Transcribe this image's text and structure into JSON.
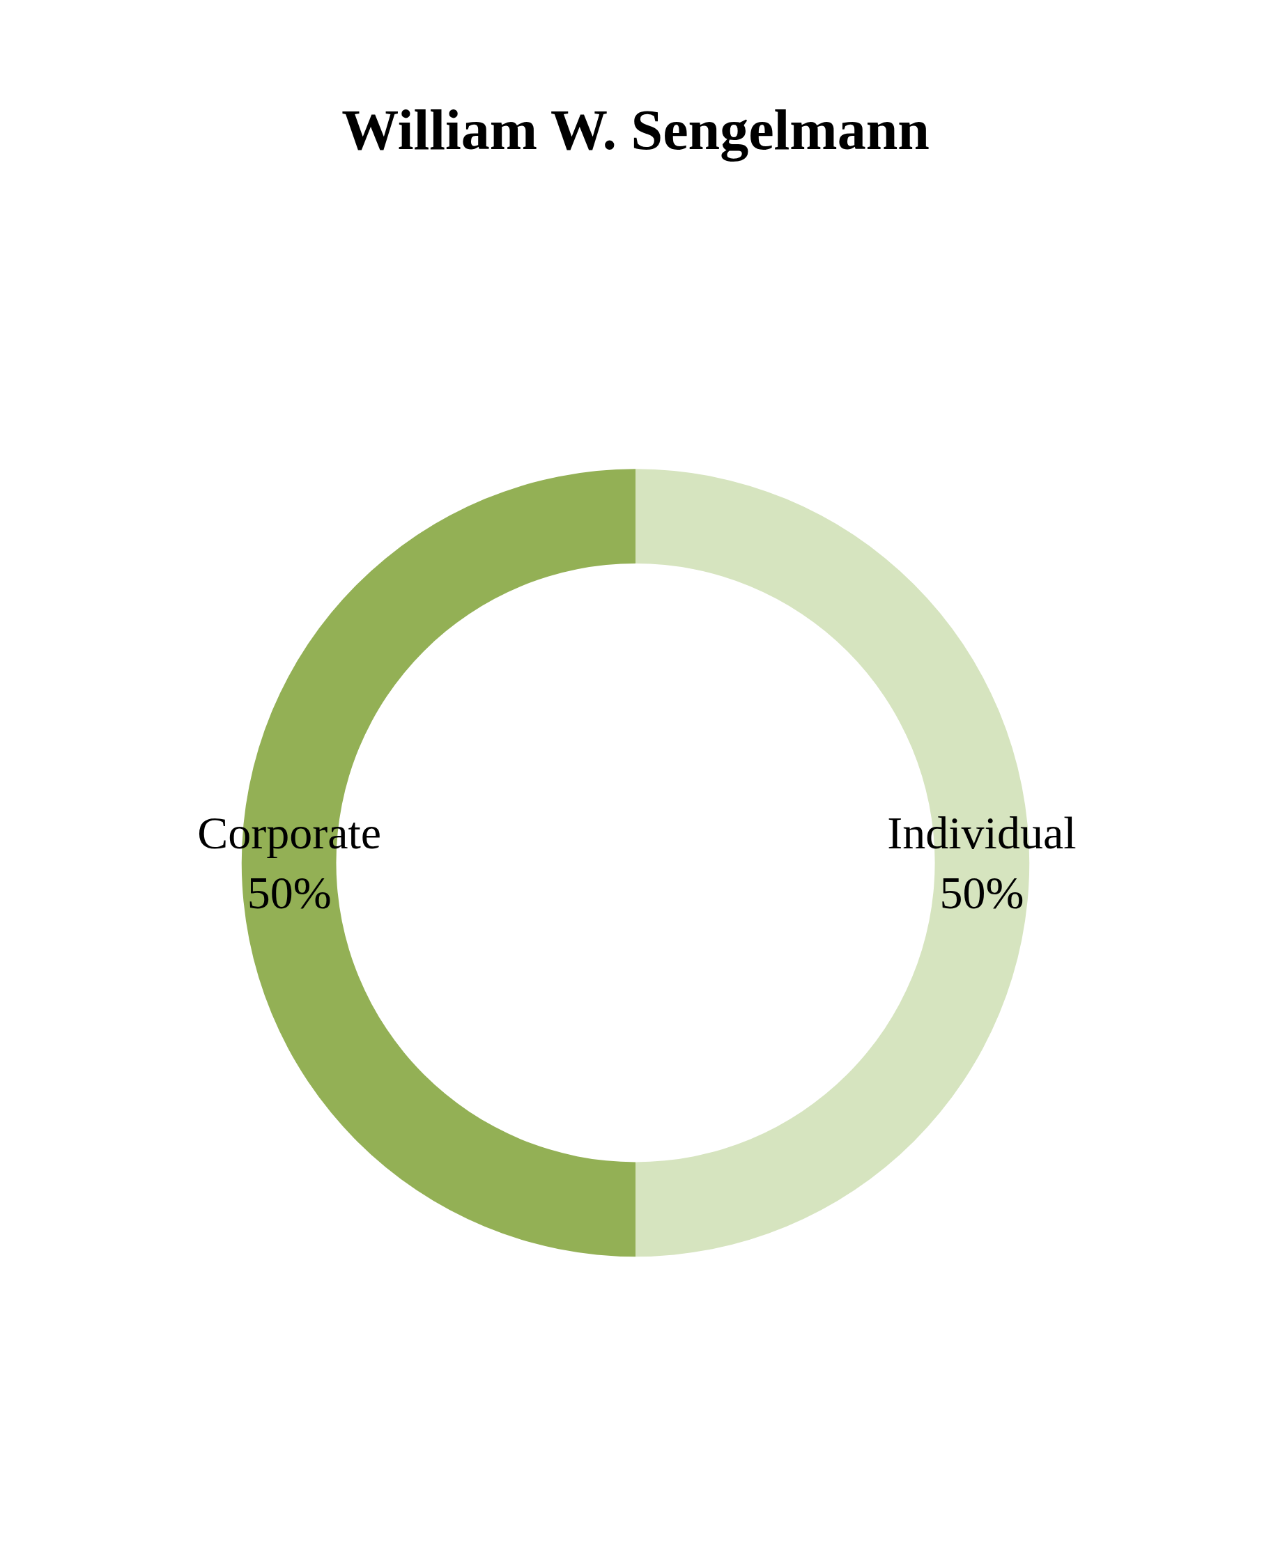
{
  "chart_data": {
    "type": "donut",
    "title": "William W. Sengelmann",
    "categories": [
      "Corporate",
      "Individual"
    ],
    "values": [
      50,
      50
    ],
    "value_labels": [
      "50%",
      "50%"
    ],
    "colors": [
      "#93b055",
      "#d6e4bf"
    ],
    "legend": false
  }
}
